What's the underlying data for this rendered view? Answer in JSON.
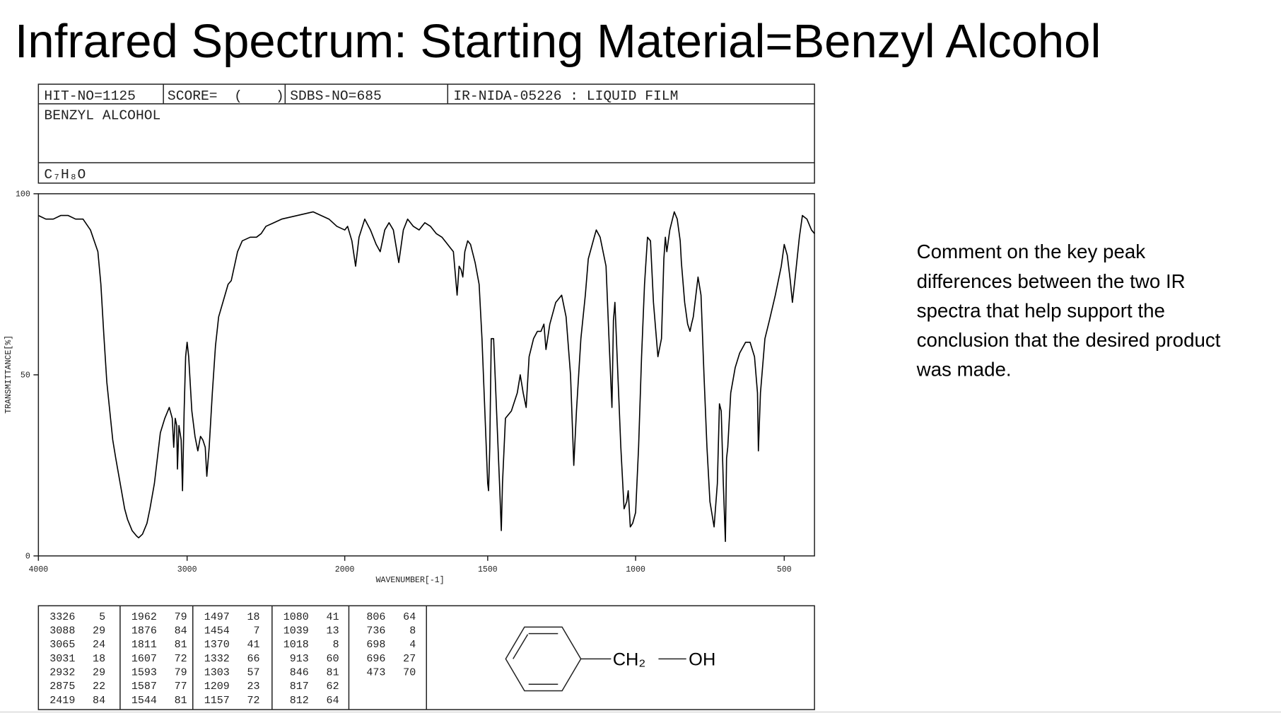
{
  "title": "Infrared Spectrum: Starting Material=Benzyl Alcohol",
  "spectrum_header": {
    "hit_no": "HIT-NO=1125",
    "score": "SCORE=  (    )",
    "sdbs_no": "SDBS-NO=685",
    "method": "IR-NIDA-05226 : LIQUID FILM",
    "compound": "BENZYL ALCOHOL",
    "formula": "C₇H₈O"
  },
  "chart_data": {
    "type": "line",
    "xlabel": "WAVENUMBER[-1]",
    "ylabel": "TRANSMITTANCE[%]",
    "xlim": [
      4000,
      400
    ],
    "ylim": [
      0,
      100
    ],
    "xticks": [
      4000,
      3000,
      2000,
      1500,
      1000,
      500
    ],
    "yticks": [
      100,
      50,
      0
    ],
    "x": [
      4000,
      3950,
      3900,
      3850,
      3800,
      3750,
      3700,
      3650,
      3600,
      3580,
      3560,
      3540,
      3520,
      3500,
      3480,
      3450,
      3420,
      3400,
      3370,
      3340,
      3326,
      3300,
      3270,
      3250,
      3220,
      3200,
      3180,
      3150,
      3120,
      3100,
      3090,
      3080,
      3070,
      3065,
      3055,
      3040,
      3031,
      3020,
      3010,
      3000,
      2990,
      2970,
      2950,
      2932,
      2915,
      2900,
      2885,
      2875,
      2860,
      2840,
      2820,
      2800,
      2760,
      2740,
      2720,
      2700,
      2680,
      2650,
      2600,
      2560,
      2530,
      2500,
      2450,
      2400,
      2300,
      2200,
      2150,
      2100,
      2050,
      2000,
      1990,
      1975,
      1962,
      1950,
      1930,
      1910,
      1890,
      1876,
      1860,
      1845,
      1830,
      1811,
      1795,
      1780,
      1760,
      1740,
      1720,
      1700,
      1680,
      1660,
      1640,
      1620,
      1607,
      1600,
      1593,
      1587,
      1580,
      1570,
      1560,
      1544,
      1530,
      1520,
      1510,
      1500,
      1497,
      1493,
      1488,
      1480,
      1470,
      1460,
      1454,
      1450,
      1440,
      1420,
      1400,
      1390,
      1380,
      1370,
      1360,
      1345,
      1332,
      1320,
      1310,
      1303,
      1290,
      1270,
      1250,
      1235,
      1220,
      1209,
      1200,
      1185,
      1170,
      1160,
      1140,
      1133,
      1120,
      1100,
      1090,
      1080,
      1075,
      1070,
      1060,
      1050,
      1039,
      1030,
      1025,
      1018,
      1010,
      1000,
      990,
      980,
      970,
      960,
      950,
      940,
      925,
      913,
      905,
      900,
      895,
      885,
      870,
      860,
      850,
      846,
      835,
      825,
      817,
      812,
      806,
      790,
      780,
      770,
      760,
      750,
      736,
      725,
      718,
      712,
      705,
      698,
      694,
      690,
      680,
      665,
      650,
      630,
      615,
      600,
      590,
      587,
      580,
      565,
      550,
      530,
      510,
      500,
      490,
      480,
      473,
      465,
      450,
      440,
      425,
      410,
      400
    ],
    "series": [
      {
        "color": "#000000",
        "values": [
          94,
          93,
          93,
          94,
          94,
          93,
          93,
          90,
          84,
          75,
          61,
          48,
          40,
          32,
          27,
          20,
          13,
          10,
          7,
          5.5,
          5,
          6,
          9,
          13,
          20,
          27,
          34,
          38,
          41,
          38,
          30,
          38,
          36,
          24,
          36,
          32,
          18,
          40,
          55,
          59,
          55,
          40,
          33,
          29,
          33,
          32,
          30,
          22,
          30,
          45,
          58,
          66,
          72,
          75,
          76,
          80,
          84,
          87,
          88,
          88,
          89,
          91,
          92,
          93,
          94,
          95,
          94,
          93,
          91,
          90,
          91,
          87,
          80,
          88,
          93,
          90,
          86,
          84,
          90,
          92,
          90,
          81,
          90,
          93,
          91,
          90,
          92,
          91,
          89,
          88,
          86,
          84,
          72,
          80,
          79,
          77,
          84,
          87,
          86,
          81,
          75,
          60,
          40,
          20,
          18,
          30,
          60,
          60,
          40,
          20,
          7,
          20,
          38,
          40,
          45,
          50,
          45,
          41,
          55,
          60,
          62,
          62,
          64,
          57,
          64,
          70,
          72,
          66,
          50,
          25,
          40,
          60,
          72,
          82,
          88,
          90,
          88,
          80,
          60,
          41,
          65,
          70,
          50,
          30,
          13,
          15,
          18,
          8,
          9,
          12,
          30,
          55,
          75,
          88,
          87,
          70,
          55,
          60,
          82,
          88,
          84,
          90,
          95,
          93,
          87,
          81,
          70,
          64,
          62,
          64,
          66,
          77,
          72,
          50,
          30,
          15,
          8,
          20,
          42,
          40,
          20,
          4,
          27,
          30,
          45,
          52,
          56,
          59,
          59,
          55,
          45,
          29,
          45,
          60,
          65,
          72,
          80,
          86,
          83,
          76,
          70,
          76,
          88,
          94,
          93,
          90,
          89
        ]
      }
    ]
  },
  "peak_table": [
    [
      [
        3326,
        5
      ],
      [
        3088,
        29
      ],
      [
        3065,
        24
      ],
      [
        3031,
        18
      ],
      [
        2932,
        29
      ],
      [
        2875,
        22
      ],
      [
        2419,
        84
      ]
    ],
    [
      [
        1962,
        79
      ],
      [
        1876,
        84
      ],
      [
        1811,
        81
      ],
      [
        1607,
        72
      ],
      [
        1593,
        79
      ],
      [
        1587,
        77
      ],
      [
        1544,
        81
      ]
    ],
    [
      [
        1497,
        18
      ],
      [
        1454,
        7
      ],
      [
        1370,
        41
      ],
      [
        1332,
        66
      ],
      [
        1303,
        57
      ],
      [
        1209,
        23
      ],
      [
        1157,
        72
      ]
    ],
    [
      [
        1080,
        41
      ],
      [
        1039,
        13
      ],
      [
        1018,
        8
      ],
      [
        913,
        60
      ],
      [
        846,
        81
      ],
      [
        817,
        62
      ],
      [
        812,
        64
      ]
    ],
    [
      [
        806,
        64
      ],
      [
        736,
        8
      ],
      [
        698,
        4
      ],
      [
        696,
        27
      ],
      [
        473,
        70
      ]
    ]
  ],
  "structure": {
    "group": "CH₂",
    "hydroxyl": "OH"
  },
  "comment": [
    "Comment on the key peak",
    "differences between the two IR",
    "spectra that help support the",
    "conclusion that the desired product",
    "was made."
  ]
}
